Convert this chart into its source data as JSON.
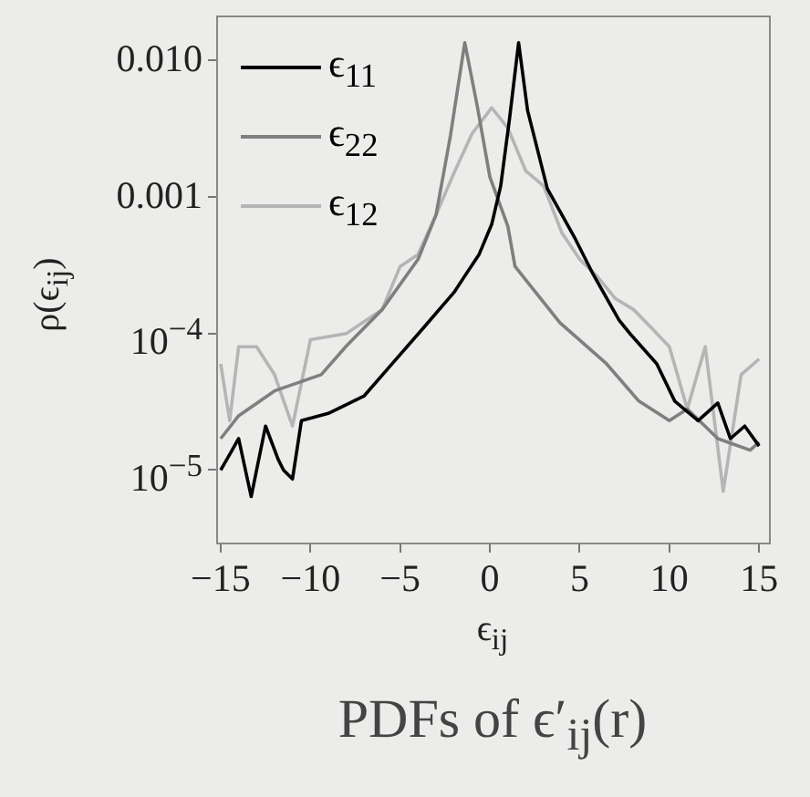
{
  "chart_data": {
    "type": "line",
    "title": "PDFs of ϵ′$_{ij}$(r)",
    "xlabel": "ϵ$_{ij}$",
    "ylabel": "ρ(ϵ$_{ij}$)",
    "log": "y",
    "xlim": [
      -15.2,
      15.6
    ],
    "ylim": [
      2.9e-06,
      0.021
    ],
    "xticks": [
      -15,
      -10,
      -5,
      0,
      5,
      10,
      15
    ],
    "yticks": [
      {
        "value": 0.01,
        "label": "0.010"
      },
      {
        "value": 0.001,
        "label": "0.001"
      },
      {
        "value": 0.0001,
        "label": "10$^{−4}$"
      },
      {
        "value": 1e-05,
        "label": "10$^{−5}$"
      }
    ],
    "grid": false,
    "legend": "top left",
    "marker": "none",
    "line_style": "solid",
    "series": [
      {
        "name": "ϵ$_{11}$",
        "color": "#000000",
        "x": [
          -15,
          -14.5,
          -14,
          -13.3,
          -12.5,
          -11.8,
          -11.5,
          -11,
          -10.5,
          -9,
          -7,
          -5.7,
          -3.7,
          -2,
          -0.6,
          0.1,
          0.6,
          1.1,
          1.6,
          2.1,
          3.2,
          4.7,
          5.7,
          7.2,
          7.8,
          9.3,
          10.3,
          11.6,
          12.7,
          13.4,
          14.2,
          15
        ],
        "values": [
          1e-05,
          1.3e-05,
          1.7e-05,
          6.4e-06,
          2.1e-05,
          1.2e-05,
          1e-05,
          8.6e-06,
          2.3e-05,
          2.6e-05,
          3.5e-05,
          5.5e-05,
          0.00011,
          0.0002,
          0.00038,
          0.00063,
          0.0012,
          0.0038,
          0.0135,
          0.0043,
          0.00115,
          0.00051,
          0.00028,
          0.000125,
          0.0001,
          6e-05,
          3.2e-05,
          2.3e-05,
          3.1e-05,
          1.7e-05,
          2.1e-05,
          1.5e-05
        ]
      },
      {
        "name": "ϵ$_{22}$",
        "color": "#7f7f7f",
        "x": [
          -15,
          -14,
          -12,
          -9.4,
          -8,
          -6,
          -4,
          -3,
          -2.2,
          -1.4,
          -0.7,
          0,
          1,
          1.4,
          3.9,
          6.5,
          8.3,
          10,
          11,
          12.7,
          14.5,
          15
        ],
        "values": [
          1.7e-05,
          2.5e-05,
          3.8e-05,
          5e-05,
          8.1e-05,
          0.00015,
          0.00035,
          0.00074,
          0.0028,
          0.0135,
          0.0046,
          0.0014,
          0.00061,
          0.00031,
          0.00012,
          6e-05,
          3.2e-05,
          2.3e-05,
          2.8e-05,
          1.7e-05,
          1.4e-05,
          1.6e-05
        ]
      },
      {
        "name": "ϵ$_{12}$",
        "color": "#b5b5b5",
        "x": [
          -15,
          -14.5,
          -14,
          -13,
          -12,
          -11,
          -10,
          -8,
          -6,
          -5,
          -4,
          -3,
          -2,
          -1,
          0.1,
          1,
          2,
          3,
          4,
          5,
          6,
          7,
          8,
          9,
          10,
          11,
          12,
          13,
          14,
          15
        ],
        "values": [
          6e-05,
          2.3e-05,
          8e-05,
          8e-05,
          5e-05,
          2.1e-05,
          9e-05,
          0.0001,
          0.00015,
          0.00031,
          0.00038,
          0.00074,
          0.0015,
          0.0029,
          0.0045,
          0.0032,
          0.00155,
          0.0012,
          0.00055,
          0.00035,
          0.00026,
          0.00018,
          0.00015,
          0.00011,
          8e-05,
          2.8e-05,
          8e-05,
          7e-06,
          5e-05,
          6.5e-05
        ]
      }
    ]
  }
}
